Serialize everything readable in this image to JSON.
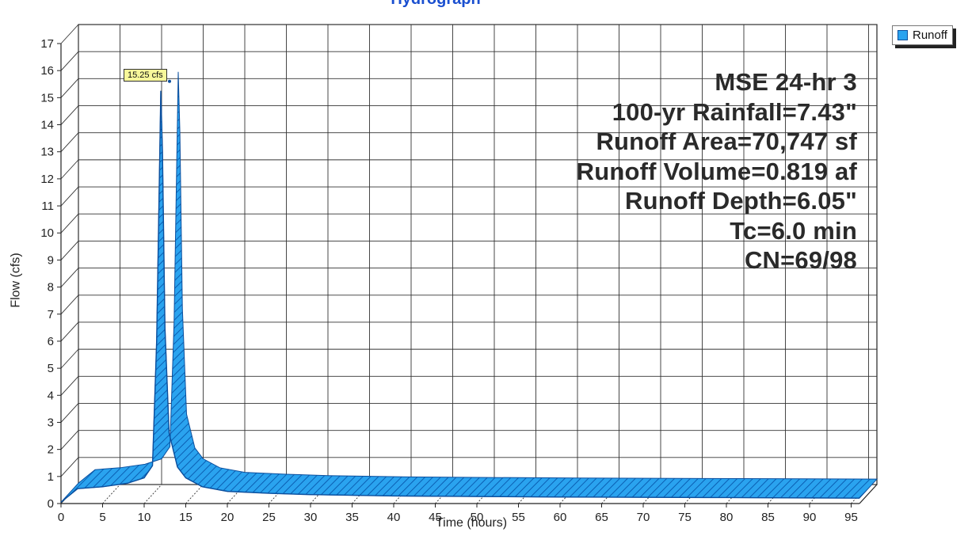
{
  "chart_data": {
    "type": "area",
    "title": "Hydrograph",
    "xlabel": "Time  (hours)",
    "ylabel": "Flow  (cfs)",
    "xlim": [
      0,
      96
    ],
    "ylim": [
      0,
      17
    ],
    "xticks": [
      0,
      5,
      10,
      15,
      20,
      25,
      30,
      35,
      40,
      45,
      50,
      55,
      60,
      65,
      70,
      75,
      80,
      85,
      90,
      95
    ],
    "yticks": [
      0,
      1,
      2,
      3,
      4,
      5,
      6,
      7,
      8,
      9,
      10,
      11,
      12,
      13,
      14,
      15,
      16,
      17
    ],
    "grid": true,
    "legend_position": "top-right",
    "series": [
      {
        "name": "Runoff",
        "color": "#2aa3ef",
        "x": [
          0,
          2,
          5,
          8,
          10,
          11,
          11.5,
          12,
          12.2,
          12.5,
          13,
          14,
          15,
          17,
          20,
          25,
          30,
          40,
          60,
          80,
          96
        ],
        "y": [
          0.05,
          0.55,
          0.62,
          0.75,
          0.95,
          1.4,
          6.0,
          15.25,
          13.0,
          6.5,
          2.6,
          1.35,
          0.95,
          0.62,
          0.45,
          0.38,
          0.33,
          0.28,
          0.24,
          0.22,
          0.2
        ]
      }
    ],
    "peak_label": "15.25 cfs",
    "annotations": [
      "MSE 24-hr 3",
      "100-yr Rainfall=7.43\"",
      "Runoff Area=70,747 sf",
      "Runoff Volume=0.819 af",
      "Runoff Depth=6.05\"",
      "Tc=6.0 min",
      "CN=69/98"
    ]
  }
}
